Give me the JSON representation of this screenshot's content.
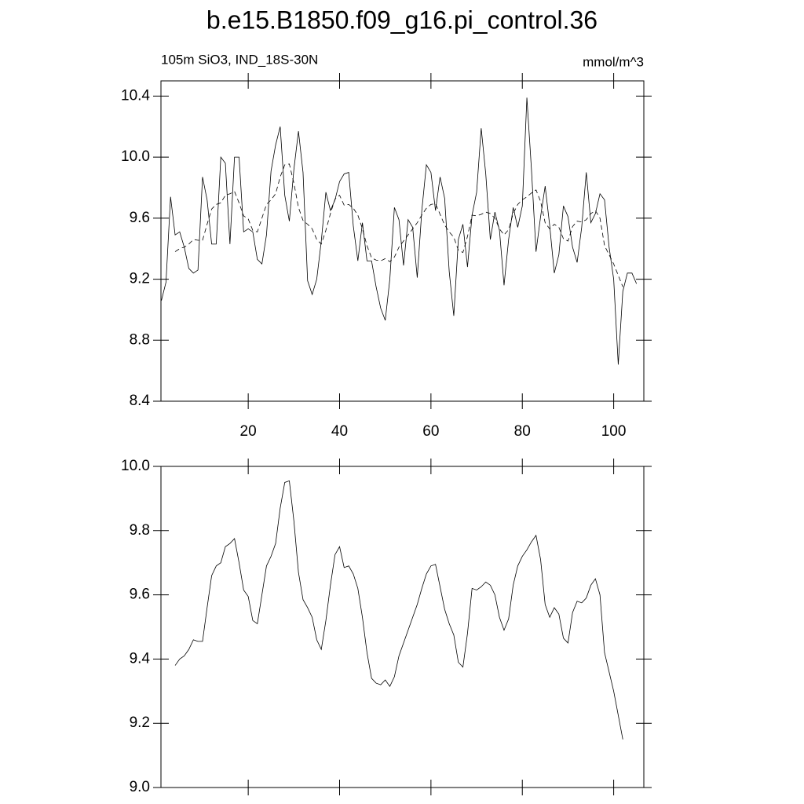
{
  "chart_data": [
    {
      "type": "line",
      "title": "b.e15.B1850.f09_g16.pi_control.36",
      "subtitle": "105m SiO3, IND_18S-30N",
      "unit_label": "mmol/m^3",
      "xlim": [
        0.9,
        106.6
      ],
      "xticks": [
        20,
        40,
        60,
        80,
        100
      ],
      "xtick_labels": true,
      "ylim": [
        8.4,
        10.5
      ],
      "yticks": [
        8.4,
        8.8,
        9.2,
        9.6,
        {
          "value": 10,
          "label": "10.0"
        },
        10.4
      ],
      "series": [
        {
          "style": "solid",
          "color": "#000000",
          "x": [
            1,
            2,
            3,
            4,
            5,
            6,
            7,
            8,
            9,
            10,
            11,
            12,
            13,
            14,
            15,
            16,
            17,
            18,
            19,
            20,
            21,
            22,
            23,
            24,
            25,
            26,
            27,
            28,
            29,
            30,
            31,
            32,
            33,
            34,
            35,
            36,
            37,
            38,
            39,
            40,
            41,
            42,
            43,
            44,
            45,
            46,
            47,
            48,
            49,
            50,
            51,
            52,
            53,
            54,
            55,
            56,
            57,
            58,
            59,
            60,
            61,
            62,
            63,
            64,
            65,
            66,
            67,
            68,
            69,
            70,
            71,
            72,
            73,
            74,
            75,
            76,
            77,
            78,
            79,
            80,
            81,
            82,
            83,
            84,
            85,
            86,
            87,
            88,
            89,
            90,
            91,
            92,
            93,
            94,
            95,
            96,
            97,
            98,
            99,
            100,
            101,
            102,
            103,
            104,
            105
          ],
          "values": [
            9.06,
            9.18,
            9.74,
            9.49,
            9.51,
            9.41,
            9.27,
            9.24,
            9.26,
            9.87,
            9.72,
            9.43,
            9.43,
            10.0,
            9.96,
            9.43,
            10.0,
            10.0,
            9.51,
            9.53,
            9.51,
            9.33,
            9.3,
            9.49,
            9.91,
            10.08,
            10.2,
            9.75,
            9.58,
            9.92,
            10.17,
            9.9,
            9.19,
            9.1,
            9.2,
            9.45,
            9.77,
            9.65,
            9.72,
            9.84,
            9.89,
            9.9,
            9.55,
            9.32,
            9.57,
            9.32,
            9.32,
            9.15,
            9.01,
            8.93,
            9.2,
            9.67,
            9.59,
            9.29,
            9.59,
            9.54,
            9.21,
            9.65,
            9.95,
            9.9,
            9.65,
            9.87,
            9.73,
            9.25,
            8.96,
            9.46,
            9.56,
            9.28,
            9.62,
            9.77,
            10.19,
            9.89,
            9.46,
            9.64,
            9.52,
            9.16,
            9.46,
            9.67,
            9.54,
            9.68,
            10.39,
            9.92,
            9.38,
            9.61,
            9.81,
            9.55,
            9.24,
            9.36,
            9.68,
            9.61,
            9.41,
            9.31,
            9.54,
            9.9,
            9.57,
            9.63,
            9.76,
            9.72,
            9.41,
            9.2,
            8.64,
            9.12,
            9.24,
            9.24,
            9.17
          ]
        },
        {
          "style": "dashed",
          "color": "#000000",
          "x": [
            4,
            5,
            6,
            7,
            8,
            9,
            10,
            11,
            12,
            13,
            14,
            15,
            16,
            17,
            18,
            19,
            20,
            21,
            22,
            23,
            24,
            25,
            26,
            27,
            28,
            29,
            30,
            31,
            32,
            33,
            34,
            35,
            36,
            37,
            38,
            39,
            40,
            41,
            42,
            43,
            44,
            45,
            46,
            47,
            48,
            49,
            50,
            51,
            52,
            53,
            54,
            55,
            56,
            57,
            58,
            59,
            60,
            61,
            62,
            63,
            64,
            65,
            66,
            67,
            68,
            69,
            70,
            71,
            72,
            73,
            74,
            75,
            76,
            77,
            78,
            79,
            80,
            81,
            82,
            83,
            84,
            85,
            86,
            87,
            88,
            89,
            90,
            91,
            92,
            93,
            94,
            95,
            96,
            97,
            98,
            99,
            100,
            101,
            102
          ],
          "values": [
            9.38,
            9.4,
            9.41,
            9.43,
            9.46,
            9.455,
            9.455,
            9.56,
            9.66,
            9.69,
            9.7,
            9.75,
            9.76,
            9.775,
            9.7,
            9.615,
            9.595,
            9.52,
            9.51,
            9.6,
            9.69,
            9.72,
            9.76,
            9.87,
            9.95,
            9.955,
            9.83,
            9.67,
            9.585,
            9.56,
            9.53,
            9.46,
            9.43,
            9.52,
            9.63,
            9.725,
            9.75,
            9.685,
            9.69,
            9.665,
            9.62,
            9.53,
            9.42,
            9.34,
            9.325,
            9.32,
            9.335,
            9.315,
            9.345,
            9.41,
            9.45,
            9.49,
            9.53,
            9.57,
            9.62,
            9.665,
            9.69,
            9.695,
            9.625,
            9.555,
            9.51,
            9.475,
            9.39,
            9.375,
            9.48,
            9.62,
            9.615,
            9.625,
            9.64,
            9.63,
            9.6,
            9.53,
            9.49,
            9.525,
            9.63,
            9.69,
            9.72,
            9.74,
            9.765,
            9.785,
            9.71,
            9.57,
            9.53,
            9.56,
            9.54,
            9.465,
            9.45,
            9.545,
            9.58,
            9.575,
            9.59,
            9.63,
            9.65,
            9.6,
            9.42,
            9.36,
            9.3,
            9.225,
            9.15
          ]
        }
      ]
    },
    {
      "type": "line",
      "xlim": [
        0.9,
        106.6
      ],
      "xticks": [
        20,
        40,
        60,
        80,
        100
      ],
      "xtick_labels": false,
      "ylim": [
        9.0,
        10.0
      ],
      "yticks": [
        {
          "value": 9,
          "label": "9.0"
        },
        9.2,
        9.4,
        9.6,
        9.8,
        {
          "value": 10,
          "label": "10.0"
        }
      ],
      "series": [
        {
          "style": "solid",
          "color": "#000000",
          "x": [
            4,
            5,
            6,
            7,
            8,
            9,
            10,
            11,
            12,
            13,
            14,
            15,
            16,
            17,
            18,
            19,
            20,
            21,
            22,
            23,
            24,
            25,
            26,
            27,
            28,
            29,
            30,
            31,
            32,
            33,
            34,
            35,
            36,
            37,
            38,
            39,
            40,
            41,
            42,
            43,
            44,
            45,
            46,
            47,
            48,
            49,
            50,
            51,
            52,
            53,
            54,
            55,
            56,
            57,
            58,
            59,
            60,
            61,
            62,
            63,
            64,
            65,
            66,
            67,
            68,
            69,
            70,
            71,
            72,
            73,
            74,
            75,
            76,
            77,
            78,
            79,
            80,
            81,
            82,
            83,
            84,
            85,
            86,
            87,
            88,
            89,
            90,
            91,
            92,
            93,
            94,
            95,
            96,
            97,
            98,
            99,
            100,
            101,
            102
          ],
          "values": [
            9.38,
            9.4,
            9.41,
            9.43,
            9.46,
            9.455,
            9.455,
            9.56,
            9.66,
            9.69,
            9.7,
            9.75,
            9.76,
            9.775,
            9.7,
            9.615,
            9.595,
            9.52,
            9.51,
            9.6,
            9.69,
            9.72,
            9.76,
            9.87,
            9.95,
            9.955,
            9.83,
            9.67,
            9.585,
            9.56,
            9.53,
            9.46,
            9.43,
            9.52,
            9.63,
            9.725,
            9.75,
            9.685,
            9.69,
            9.665,
            9.62,
            9.53,
            9.42,
            9.34,
            9.325,
            9.32,
            9.335,
            9.315,
            9.345,
            9.41,
            9.45,
            9.49,
            9.53,
            9.57,
            9.62,
            9.665,
            9.69,
            9.695,
            9.625,
            9.555,
            9.51,
            9.475,
            9.39,
            9.375,
            9.48,
            9.62,
            9.615,
            9.625,
            9.64,
            9.63,
            9.6,
            9.53,
            9.49,
            9.525,
            9.63,
            9.69,
            9.72,
            9.74,
            9.765,
            9.785,
            9.71,
            9.57,
            9.53,
            9.56,
            9.54,
            9.465,
            9.45,
            9.545,
            9.58,
            9.575,
            9.59,
            9.63,
            9.65,
            9.6,
            9.42,
            9.36,
            9.3,
            9.225,
            9.15
          ]
        }
      ]
    }
  ]
}
